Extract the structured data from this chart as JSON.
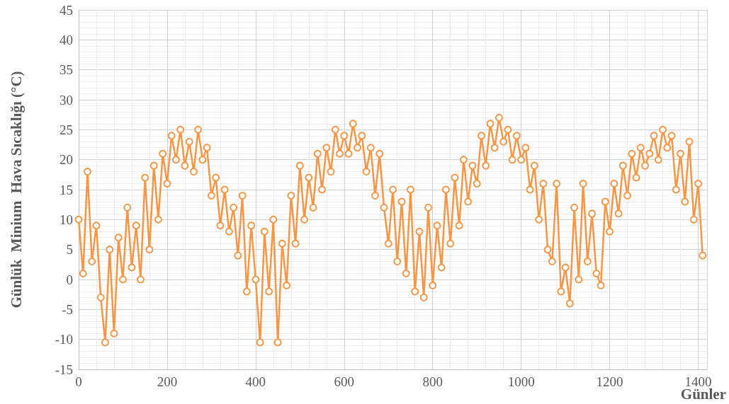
{
  "chart_data": {
    "type": "line",
    "xlabel": "Günler",
    "ylabel": "Günlük  Minium  Hava Sıcaklığı (°C)",
    "x": [
      0,
      10,
      20,
      30,
      40,
      50,
      60,
      70,
      80,
      90,
      100,
      110,
      120,
      130,
      140,
      150,
      160,
      170,
      180,
      190,
      200,
      210,
      220,
      230,
      240,
      250,
      260,
      270,
      280,
      290,
      300,
      310,
      320,
      330,
      340,
      350,
      360,
      370,
      380,
      390,
      400,
      410,
      420,
      430,
      440,
      450,
      460,
      470,
      480,
      490,
      500,
      510,
      520,
      530,
      540,
      550,
      560,
      570,
      580,
      590,
      600,
      610,
      620,
      630,
      640,
      650,
      660,
      670,
      680,
      690,
      700,
      710,
      720,
      730,
      740,
      750,
      760,
      770,
      780,
      790,
      800,
      810,
      820,
      830,
      840,
      850,
      860,
      870,
      880,
      890,
      900,
      910,
      920,
      930,
      940,
      950,
      960,
      970,
      980,
      990,
      1000,
      1010,
      1020,
      1030,
      1040,
      1050,
      1060,
      1070,
      1080,
      1090,
      1100,
      1110,
      1120,
      1130,
      1140,
      1150,
      1160,
      1170,
      1180,
      1190,
      1200,
      1210,
      1220,
      1230,
      1240,
      1250,
      1260,
      1270,
      1280,
      1290,
      1300,
      1310,
      1320,
      1330,
      1340,
      1350,
      1360,
      1370,
      1380,
      1390,
      1400,
      1410
    ],
    "series": [
      {
        "color": "#f79646",
        "values": [
          10,
          1,
          18,
          3,
          9,
          -3,
          -10.5,
          5,
          -9,
          7,
          0,
          12,
          2,
          9,
          0,
          17,
          5,
          19,
          10,
          21,
          16,
          24,
          20,
          25,
          19,
          23,
          18,
          25,
          20,
          22,
          14,
          17,
          9,
          15,
          8,
          12,
          4,
          14,
          -2,
          9,
          0,
          -10.5,
          8,
          -2,
          10,
          -10.5,
          6,
          -1,
          14,
          6,
          19,
          10,
          17,
          12,
          21,
          15,
          22,
          18,
          25,
          21,
          24,
          21,
          26,
          22,
          24,
          18,
          22,
          14,
          21,
          12,
          6,
          15,
          3,
          13,
          1,
          15,
          -2,
          8,
          -3,
          12,
          -1,
          9,
          2,
          15,
          6,
          17,
          9,
          20,
          13,
          19,
          16,
          24,
          19,
          26,
          22,
          27,
          23,
          25,
          20,
          24,
          20,
          22,
          15,
          19,
          10,
          16,
          5,
          3,
          16,
          -2,
          2,
          -4,
          12,
          0,
          16,
          3,
          11,
          1,
          -1,
          13,
          8,
          16,
          11,
          19,
          14,
          21,
          17,
          22,
          19,
          21,
          24,
          20,
          25,
          22,
          24,
          15,
          21,
          13,
          23,
          10,
          16,
          4
        ]
      }
    ],
    "xlim": [
      0,
      1420
    ],
    "xticks": [
      0,
      200,
      400,
      600,
      800,
      1000,
      1200,
      1400
    ],
    "ylim": [
      -15,
      45
    ],
    "yticks": [
      -15,
      -10,
      -5,
      0,
      5,
      10,
      15,
      20,
      25,
      30,
      35,
      40,
      45
    ],
    "grid": true,
    "marker": "circle",
    "line_style": "solid"
  }
}
